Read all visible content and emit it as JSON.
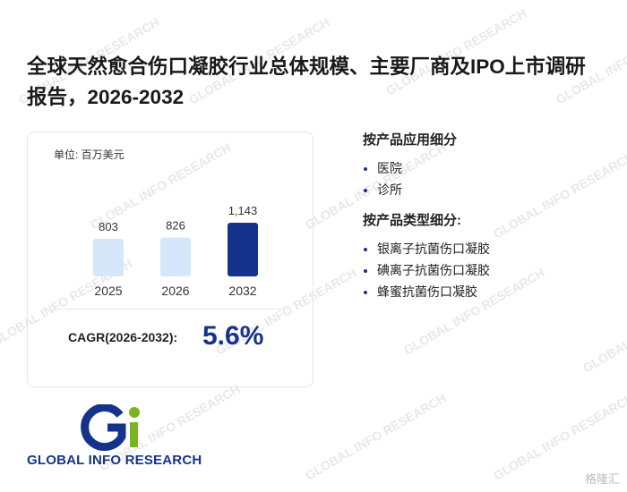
{
  "header": {
    "title": "全球天然愈合伤口凝胶行业总体规模、主要厂商及IPO上市调研报告，2026-2032"
  },
  "chart_data": {
    "type": "bar",
    "unit": "单位: 百万美元",
    "categories": [
      "2025",
      "2026",
      "2032"
    ],
    "values": [
      803,
      826,
      1143
    ],
    "value_labels": [
      "803",
      "826",
      "1,143"
    ],
    "colors": [
      "#d6e7fa",
      "#d6e7fa",
      "#15338c"
    ]
  },
  "cagr": {
    "label": "CAGR(2026-2032):",
    "value": "5.6%"
  },
  "segments": [
    {
      "heading": "按产品应用细分",
      "items": [
        "医院",
        "诊所"
      ]
    },
    {
      "heading": "按产品类型细分:",
      "items": [
        "银离子抗菌伤口凝胶",
        "碘离子抗菌伤口凝胶",
        "蜂蜜抗菌伤口凝胶"
      ]
    }
  ],
  "logo": {
    "text": "GLOBAL INFO RESEARCH"
  },
  "watermark": {
    "text": "GLOBAL INFO RESEARCH",
    "source": "格隆汇"
  }
}
